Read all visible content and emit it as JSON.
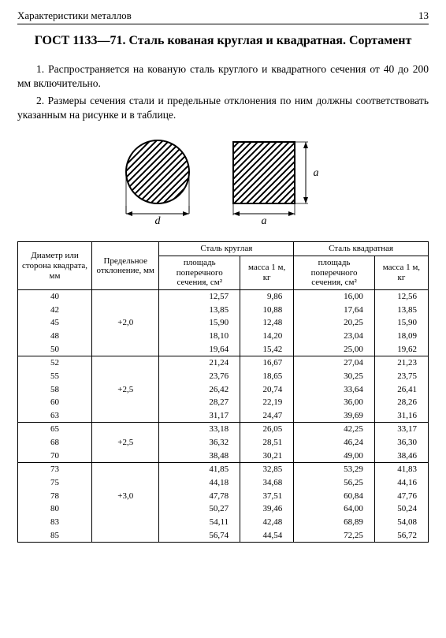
{
  "header": {
    "left": "Характеристики металлов",
    "page": "13"
  },
  "title": "ГОСТ 1133—71. Сталь кованая круглая и квадратная. Сортамент",
  "para1": "1. Распространяется на кованую сталь круглого и квадратного сечения от 40 до 200 мм включительно.",
  "para2": "2. Размеры сечения стали и предельные отклонения по ним должны соответствовать указанным на рисунке и в таблице.",
  "fig": {
    "d": "d",
    "a": "a"
  },
  "columns": {
    "col1": "Диаметр или сторона квадрата, мм",
    "col2": "Предельное отклонение, мм",
    "group_round": "Сталь круглая",
    "group_square": "Сталь квадратная",
    "area": "площадь поперечного сечения, см²",
    "mass": "масса 1 м, кг"
  },
  "groups": [
    {
      "tol": "+2,0",
      "rows": [
        {
          "d": "40",
          "ra": "12,57",
          "rm": "9,86",
          "sa": "16,00",
          "sm": "12,56"
        },
        {
          "d": "42",
          "ra": "13,85",
          "rm": "10,88",
          "sa": "17,64",
          "sm": "13,85"
        },
        {
          "d": "45",
          "ra": "15,90",
          "rm": "12,48",
          "sa": "20,25",
          "sm": "15,90"
        },
        {
          "d": "48",
          "ra": "18,10",
          "rm": "14,20",
          "sa": "23,04",
          "sm": "18,09"
        },
        {
          "d": "50",
          "ra": "19,64",
          "rm": "15,42",
          "sa": "25,00",
          "sm": "19,62"
        }
      ]
    },
    {
      "tol": "+2,5",
      "rows": [
        {
          "d": "52",
          "ra": "21,24",
          "rm": "16,67",
          "sa": "27,04",
          "sm": "21,23"
        },
        {
          "d": "55",
          "ra": "23,76",
          "rm": "18,65",
          "sa": "30,25",
          "sm": "23,75"
        },
        {
          "d": "58",
          "ra": "26,42",
          "rm": "20,74",
          "sa": "33,64",
          "sm": "26,41"
        },
        {
          "d": "60",
          "ra": "28,27",
          "rm": "22,19",
          "sa": "36,00",
          "sm": "28,26"
        },
        {
          "d": "63",
          "ra": "31,17",
          "rm": "24,47",
          "sa": "39,69",
          "sm": "31,16"
        }
      ]
    },
    {
      "tol": "+2,5",
      "rows": [
        {
          "d": "65",
          "ra": "33,18",
          "rm": "26,05",
          "sa": "42,25",
          "sm": "33,17"
        },
        {
          "d": "68",
          "ra": "36,32",
          "rm": "28,51",
          "sa": "46,24",
          "sm": "36,30"
        },
        {
          "d": "70",
          "ra": "38,48",
          "rm": "30,21",
          "sa": "49,00",
          "sm": "38,46"
        }
      ]
    },
    {
      "tol": "+3,0",
      "rows": [
        {
          "d": "73",
          "ra": "41,85",
          "rm": "32,85",
          "sa": "53,29",
          "sm": "41,83"
        },
        {
          "d": "75",
          "ra": "44,18",
          "rm": "34,68",
          "sa": "56,25",
          "sm": "44,16"
        },
        {
          "d": "78",
          "ra": "47,78",
          "rm": "37,51",
          "sa": "60,84",
          "sm": "47,76"
        },
        {
          "d": "80",
          "ra": "50,27",
          "rm": "39,46",
          "sa": "64,00",
          "sm": "50,24"
        },
        {
          "d": "83",
          "ra": "54,11",
          "rm": "42,48",
          "sa": "68,89",
          "sm": "54,08"
        },
        {
          "d": "85",
          "ra": "56,74",
          "rm": "44,54",
          "sa": "72,25",
          "sm": "56,72"
        }
      ]
    }
  ]
}
